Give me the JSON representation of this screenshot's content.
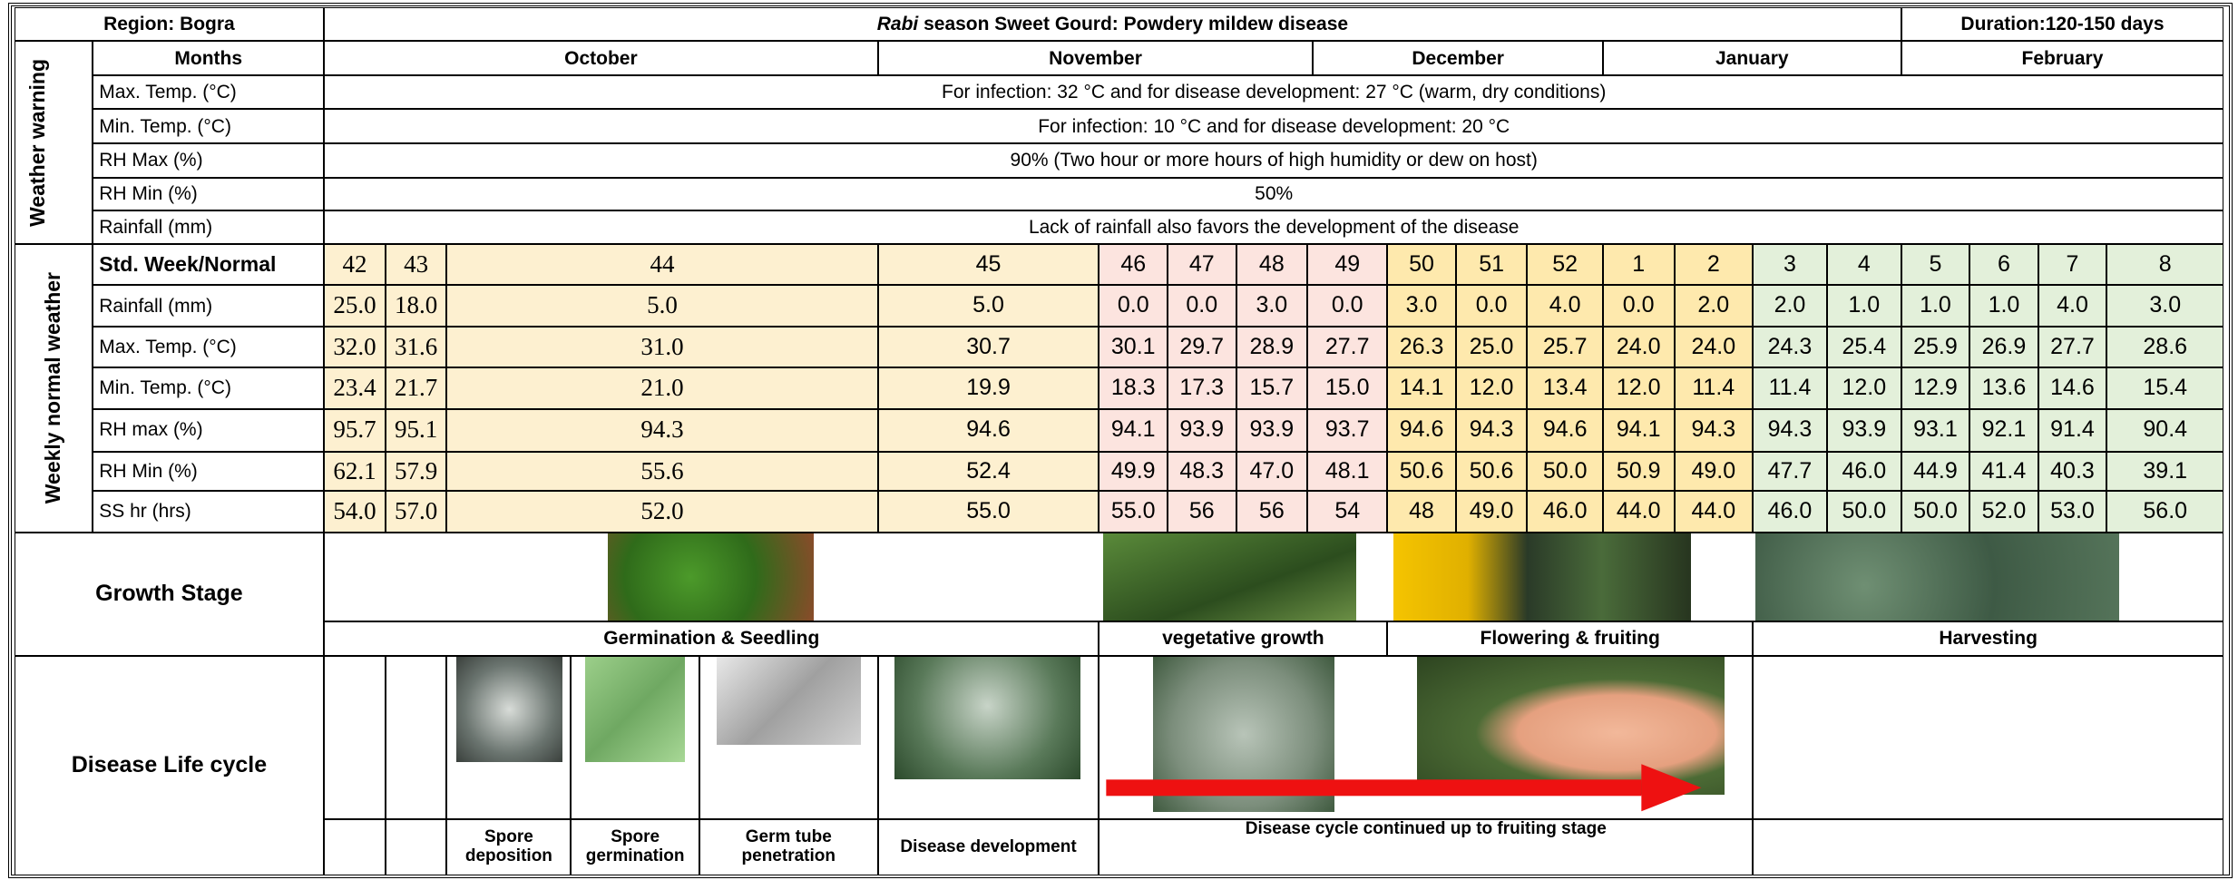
{
  "header": {
    "region": "Region: Bogra",
    "title_italic": "Rabi",
    "title_rest": " season Sweet Gourd: Powdery mildew disease",
    "duration": "Duration:120-150 days"
  },
  "months_label": "Months",
  "months": [
    "October",
    "November",
    "December",
    "January",
    "February"
  ],
  "weather_warning": {
    "label": "Weather warning",
    "rows": [
      {
        "label": "Max. Temp. (°C)",
        "text": "For infection: 32 °C and for disease development: 27 °C (warm, dry conditions)"
      },
      {
        "label": "Min. Temp. (°C)",
        "text": "For infection: 10 °C and for disease development: 20 °C"
      },
      {
        "label": "RH Max (%)",
        "text": "90% (Two hour or more hours of high humidity or dew on host)"
      },
      {
        "label": "RH Min (%)",
        "text": "50%"
      },
      {
        "label": "Rainfall (mm)",
        "text": "Lack of rainfall also favors the development of the disease"
      }
    ]
  },
  "weekly": {
    "label": "Weekly normal weather",
    "week_label": "Std. Week/Normal",
    "weeks": [
      "42",
      "43",
      "44",
      "45",
      "46",
      "47",
      "48",
      "49",
      "50",
      "51",
      "52",
      "1",
      "2",
      "3",
      "4",
      "5",
      "6",
      "7",
      "8"
    ],
    "rows": [
      {
        "label": "Rainfall (mm)",
        "values": [
          "25.0",
          "18.0",
          "5.0",
          "5.0",
          "0.0",
          "0.0",
          "3.0",
          "0.0",
          "3.0",
          "0.0",
          "4.0",
          "0.0",
          "2.0",
          "2.0",
          "1.0",
          "1.0",
          "1.0",
          "4.0",
          "3.0"
        ]
      },
      {
        "label": "Max. Temp. (°C)",
        "values": [
          "32.0",
          "31.6",
          "31.0",
          "30.7",
          "30.1",
          "29.7",
          "28.9",
          "27.7",
          "26.3",
          "25.0",
          "25.7",
          "24.0",
          "24.0",
          "24.3",
          "25.4",
          "25.9",
          "26.9",
          "27.7",
          "28.6"
        ]
      },
      {
        "label": "Min. Temp. (°C)",
        "values": [
          "23.4",
          "21.7",
          "21.0",
          "19.9",
          "18.3",
          "17.3",
          "15.7",
          "15.0",
          "14.1",
          "12.0",
          "13.4",
          "12.0",
          "11.4",
          "11.4",
          "12.0",
          "12.9",
          "13.6",
          "14.6",
          "15.4"
        ]
      },
      {
        "label": "RH max (%)",
        "values": [
          "95.7",
          "95.1",
          "94.3",
          "94.6",
          "94.1",
          "93.9",
          "93.9",
          "93.7",
          "94.6",
          "94.3",
          "94.6",
          "94.1",
          "94.3",
          "94.3",
          "93.9",
          "93.1",
          "92.1",
          "91.4",
          "90.4"
        ]
      },
      {
        "label": "RH Min (%)",
        "values": [
          "62.1",
          "57.9",
          "55.6",
          "52.4",
          "49.9",
          "48.3",
          "47.0",
          "48.1",
          "50.6",
          "50.6",
          "50.0",
          "50.9",
          "49.0",
          "47.7",
          "46.0",
          "44.9",
          "41.4",
          "40.3",
          "39.1"
        ]
      },
      {
        "label": "SS hr (hrs)",
        "values": [
          "54.0",
          "57.0",
          "52.0",
          "55.0",
          "55.0",
          "56",
          "56",
          "54",
          "48",
          "49.0",
          "46.0",
          "44.0",
          "44.0",
          "46.0",
          "50.0",
          "50.0",
          "52.0",
          "53.0",
          "56.0"
        ]
      }
    ]
  },
  "growth": {
    "label": "Growth Stage",
    "stages": [
      "Germination & Seedling",
      "vegetative growth",
      "Flowering & fruiting",
      "Harvesting"
    ]
  },
  "disease": {
    "label": "Disease Life cycle",
    "steps": [
      "Spore deposition",
      "Spore germination",
      "Germ tube penetration",
      "Disease development",
      "Disease cycle continued up to fruiting stage"
    ]
  }
}
